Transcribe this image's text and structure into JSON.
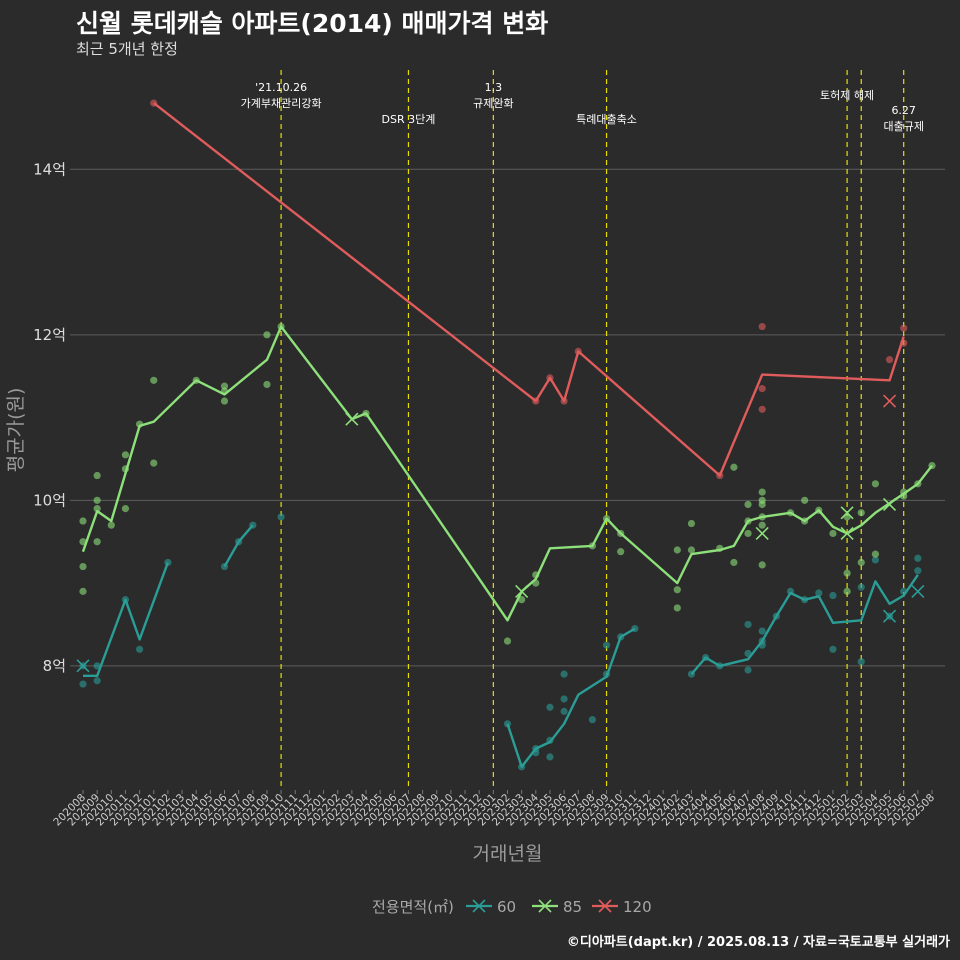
{
  "header": {
    "title": "신월 롯데캐슬 아파트(2014) 매매가격 변화",
    "subtitle": "최근 5개년 한정"
  },
  "footer": "©디아파트(dapt.kr) / 2025.08.13 / 자료=국토교통부 실거래가",
  "chart_data": {
    "type": "line",
    "xlabel": "거래년월",
    "ylabel": "평균가(원)",
    "ylim": [
      6.5,
      15.2
    ],
    "y_ticks": [
      {
        "v": 8,
        "label": "8억"
      },
      {
        "v": 10,
        "label": "10억"
      },
      {
        "v": 12,
        "label": "12억"
      },
      {
        "v": 14,
        "label": "14억"
      }
    ],
    "x_categories": [
      "202008",
      "202009",
      "202010",
      "202011",
      "202012",
      "202101",
      "202102",
      "202103",
      "202104",
      "202105",
      "202106",
      "202107",
      "202108",
      "202109",
      "202110",
      "202111",
      "202112",
      "202201",
      "202202",
      "202203",
      "202204",
      "202205",
      "202206",
      "202207",
      "202208",
      "202209",
      "202210",
      "202211",
      "202212",
      "202301",
      "202302",
      "202303",
      "202304",
      "202305",
      "202306",
      "202307",
      "202308",
      "202309",
      "202310",
      "202311",
      "202312",
      "202401",
      "202402",
      "202403",
      "202404",
      "202405",
      "202406",
      "202407",
      "202408",
      "202409",
      "202410",
      "202411",
      "202412",
      "202501",
      "202502",
      "202503",
      "202504",
      "202505",
      "202506",
      "202507",
      "202508"
    ],
    "grid": true,
    "legend": {
      "title": "전용면적(㎡)",
      "position": "bottom"
    },
    "events": [
      {
        "x": "202110",
        "lines": [
          "'21.10.26",
          "가계부채관리강화"
        ],
        "level": 0
      },
      {
        "x": "202207",
        "lines": [
          "DSR 3단계"
        ],
        "level": 2
      },
      {
        "x": "202301",
        "lines": [
          "1.3",
          "규제완화"
        ],
        "level": 0
      },
      {
        "x": "202309",
        "lines": [
          "특례대출축소"
        ],
        "level": 2
      },
      {
        "x": "202502",
        "lines": [
          "토허제 해제"
        ],
        "level": 1
      },
      {
        "x": "202503",
        "lines": [],
        "level": 1
      },
      {
        "x": "202506",
        "lines": [
          "6.27",
          "대출규제"
        ],
        "level": 3
      }
    ],
    "series": [
      {
        "name": "60",
        "color": "#2a9d96",
        "segments": [
          [
            [
              "202008",
              7.88
            ],
            [
              "202009",
              7.88
            ],
            [
              "202011",
              8.8
            ],
            [
              "202012",
              8.32
            ],
            [
              "202102",
              9.25
            ]
          ],
          [
            [
              "202106",
              9.2
            ],
            [
              "202107",
              9.5
            ],
            [
              "202108",
              9.7
            ]
          ],
          [
            [
              "202302",
              7.3
            ],
            [
              "202303",
              6.78
            ],
            [
              "202304",
              7.0
            ],
            [
              "202305",
              7.08
            ],
            [
              "202306",
              7.3
            ],
            [
              "202307",
              7.65
            ],
            [
              "202309",
              7.87
            ],
            [
              "202310",
              8.35
            ],
            [
              "202311",
              8.45
            ]
          ],
          [
            [
              "202403",
              7.9
            ],
            [
              "202404",
              8.1
            ],
            [
              "202405",
              8.0
            ],
            [
              "202407",
              8.08
            ],
            [
              "202408",
              8.3
            ],
            [
              "202409",
              8.6
            ],
            [
              "202410",
              8.88
            ],
            [
              "202411",
              8.8
            ],
            [
              "202412",
              8.84
            ],
            [
              "202501",
              8.52
            ],
            [
              "202503",
              8.55
            ],
            [
              "202504",
              9.02
            ],
            [
              "202505",
              8.75
            ],
            [
              "202506",
              8.85
            ],
            [
              "202507",
              9.1
            ]
          ]
        ],
        "points": [
          [
            "202008",
            7.78
          ],
          [
            "202008",
            8.0
          ],
          [
            "202009",
            7.82
          ],
          [
            "202009",
            8.0
          ],
          [
            "202011",
            8.8
          ],
          [
            "202012",
            8.2
          ],
          [
            "202102",
            9.25
          ],
          [
            "202106",
            9.2
          ],
          [
            "202107",
            9.5
          ],
          [
            "202108",
            9.7
          ],
          [
            "202110",
            9.8
          ],
          [
            "202302",
            7.3
          ],
          [
            "202303",
            6.78
          ],
          [
            "202304",
            7.0
          ],
          [
            "202304",
            6.95
          ],
          [
            "202305",
            7.1
          ],
          [
            "202305",
            6.9
          ],
          [
            "202305",
            7.5
          ],
          [
            "202306",
            7.45
          ],
          [
            "202306",
            7.6
          ],
          [
            "202306",
            7.9
          ],
          [
            "202308",
            7.35
          ],
          [
            "202309",
            7.9
          ],
          [
            "202309",
            8.25
          ],
          [
            "202310",
            8.35
          ],
          [
            "202311",
            8.45
          ],
          [
            "202403",
            7.9
          ],
          [
            "202404",
            8.1
          ],
          [
            "202405",
            8.0
          ],
          [
            "202407",
            7.95
          ],
          [
            "202407",
            8.15
          ],
          [
            "202407",
            8.5
          ],
          [
            "202408",
            8.25
          ],
          [
            "202408",
            8.3
          ],
          [
            "202408",
            8.42
          ],
          [
            "202409",
            8.6
          ],
          [
            "202410",
            8.9
          ],
          [
            "202411",
            8.8
          ],
          [
            "202412",
            8.88
          ],
          [
            "202501",
            8.2
          ],
          [
            "202501",
            8.85
          ],
          [
            "202503",
            8.05
          ],
          [
            "202503",
            8.95
          ],
          [
            "202504",
            9.28
          ],
          [
            "202505",
            8.6
          ],
          [
            "202506",
            8.9
          ],
          [
            "202507",
            9.15
          ],
          [
            "202507",
            9.3
          ]
        ],
        "crosses": [
          [
            "202008",
            8.0
          ],
          [
            "202505",
            8.6
          ],
          [
            "202507",
            8.9
          ]
        ]
      },
      {
        "name": "85",
        "color": "#8de07a",
        "segments": [
          [
            [
              "202008",
              9.38
            ],
            [
              "202009",
              9.87
            ],
            [
              "202010",
              9.75
            ],
            [
              "202012",
              10.9
            ],
            [
              "202101",
              10.95
            ],
            [
              "202104",
              11.45
            ],
            [
              "202106",
              11.28
            ],
            [
              "202109",
              11.7
            ],
            [
              "202110",
              12.1
            ],
            [
              "202203",
              10.98
            ],
            [
              "202204",
              11.05
            ],
            [
              "202302",
              8.55
            ],
            [
              "202303",
              8.9
            ],
            [
              "202304",
              9.05
            ],
            [
              "202305",
              9.42
            ],
            [
              "202308",
              9.45
            ],
            [
              "202309",
              9.78
            ],
            [
              "202310",
              9.6
            ],
            [
              "202402",
              9.0
            ],
            [
              "202403",
              9.35
            ],
            [
              "202405",
              9.4
            ],
            [
              "202406",
              9.45
            ],
            [
              "202407",
              9.75
            ],
            [
              "202408",
              9.8
            ],
            [
              "202410",
              9.85
            ],
            [
              "202411",
              9.75
            ],
            [
              "202412",
              9.88
            ],
            [
              "202501",
              9.68
            ],
            [
              "202502",
              9.6
            ],
            [
              "202503",
              9.7
            ],
            [
              "202504",
              9.85
            ],
            [
              "202506",
              10.08
            ],
            [
              "202507",
              10.2
            ],
            [
              "202508",
              10.42
            ]
          ]
        ],
        "points": [
          [
            "202008",
            9.2
          ],
          [
            "202008",
            9.5
          ],
          [
            "202008",
            9.75
          ],
          [
            "202008",
            8.9
          ],
          [
            "202009",
            9.5
          ],
          [
            "202009",
            9.9
          ],
          [
            "202009",
            10.0
          ],
          [
            "202009",
            10.3
          ],
          [
            "202010",
            9.7
          ],
          [
            "202011",
            9.9
          ],
          [
            "202011",
            10.38
          ],
          [
            "202011",
            10.55
          ],
          [
            "202012",
            10.92
          ],
          [
            "202101",
            11.45
          ],
          [
            "202101",
            10.45
          ],
          [
            "202104",
            11.45
          ],
          [
            "202106",
            11.2
          ],
          [
            "202106",
            11.32
          ],
          [
            "202106",
            11.38
          ],
          [
            "202109",
            11.4
          ],
          [
            "202109",
            12.0
          ],
          [
            "202110",
            12.1
          ],
          [
            "202204",
            11.05
          ],
          [
            "202302",
            8.3
          ],
          [
            "202303",
            8.8
          ],
          [
            "202304",
            9.1
          ],
          [
            "202304",
            9.0
          ],
          [
            "202308",
            9.45
          ],
          [
            "202309",
            9.78
          ],
          [
            "202310",
            9.6
          ],
          [
            "202310",
            9.38
          ],
          [
            "202402",
            9.4
          ],
          [
            "202402",
            8.7
          ],
          [
            "202402",
            8.92
          ],
          [
            "202403",
            9.72
          ],
          [
            "202403",
            9.4
          ],
          [
            "202405",
            9.42
          ],
          [
            "202406",
            10.4
          ],
          [
            "202406",
            9.25
          ],
          [
            "202407",
            9.95
          ],
          [
            "202407",
            9.6
          ],
          [
            "202407",
            9.75
          ],
          [
            "202408",
            10.1
          ],
          [
            "202408",
            10.0
          ],
          [
            "202408",
            9.95
          ],
          [
            "202408",
            9.8
          ],
          [
            "202408",
            9.7
          ],
          [
            "202408",
            9.22
          ],
          [
            "202410",
            9.85
          ],
          [
            "202411",
            10.0
          ],
          [
            "202411",
            9.75
          ],
          [
            "202412",
            9.88
          ],
          [
            "202501",
            9.6
          ],
          [
            "202502",
            9.8
          ],
          [
            "202502",
            9.12
          ],
          [
            "202502",
            8.9
          ],
          [
            "202503",
            9.25
          ],
          [
            "202503",
            9.85
          ],
          [
            "202504",
            10.2
          ],
          [
            "202504",
            9.35
          ],
          [
            "202506",
            10.05
          ],
          [
            "202506",
            10.1
          ],
          [
            "202507",
            10.2
          ],
          [
            "202508",
            10.42
          ]
        ],
        "crosses": [
          [
            "202203",
            10.98
          ],
          [
            "202303",
            8.9
          ],
          [
            "202408",
            9.6
          ],
          [
            "202502",
            9.85
          ],
          [
            "202502",
            9.6
          ],
          [
            "202505",
            9.95
          ]
        ]
      },
      {
        "name": "120",
        "color": "#e05c5c",
        "segments": [
          [
            [
              "202101",
              14.8
            ],
            [
              "202304",
              11.2
            ],
            [
              "202305",
              11.48
            ],
            [
              "202306",
              11.2
            ],
            [
              "202307",
              11.8
            ],
            [
              "202405",
              10.3
            ],
            [
              "202408",
              11.52
            ],
            [
              "202505",
              11.45
            ],
            [
              "202506",
              11.98
            ]
          ]
        ],
        "points": [
          [
            "202101",
            14.8
          ],
          [
            "202304",
            11.2
          ],
          [
            "202305",
            11.48
          ],
          [
            "202306",
            11.2
          ],
          [
            "202307",
            11.8
          ],
          [
            "202405",
            10.3
          ],
          [
            "202408",
            12.1
          ],
          [
            "202408",
            11.35
          ],
          [
            "202408",
            11.1
          ],
          [
            "202505",
            11.7
          ],
          [
            "202506",
            12.08
          ],
          [
            "202506",
            11.9
          ]
        ],
        "crosses": [
          [
            "202505",
            11.2
          ]
        ]
      }
    ]
  }
}
